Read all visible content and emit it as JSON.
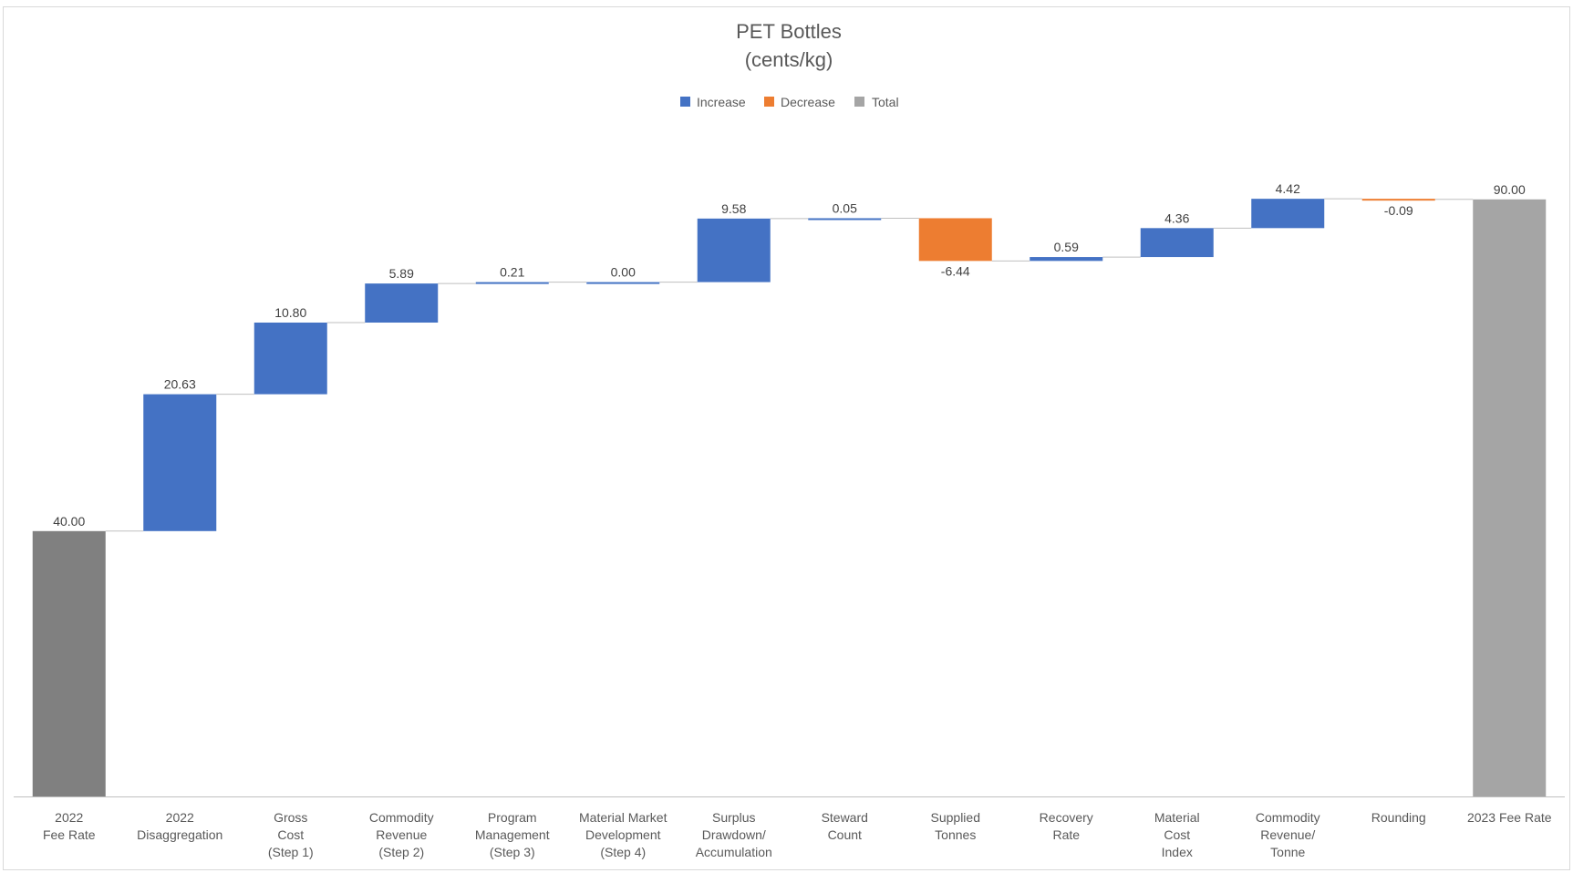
{
  "chart_data": {
    "type": "waterfall",
    "title": "PET Bottles",
    "subtitle": "(cents/kg)",
    "legend": {
      "placement": "top",
      "entries": [
        {
          "name": "Increase",
          "color": "#4472c4"
        },
        {
          "name": "Decrease",
          "color": "#ed7d31"
        },
        {
          "name": "Total",
          "color": "#a5a5a5"
        }
      ]
    },
    "categories": [
      [
        "2022",
        "Fee Rate"
      ],
      [
        "2022",
        "Disaggregation"
      ],
      [
        "Gross",
        "Cost",
        "(Step 1)"
      ],
      [
        "Commodity",
        "Revenue",
        "(Step 2)"
      ],
      [
        "Program",
        "Management",
        "(Step 3)"
      ],
      [
        "Material Market",
        "Development",
        "(Step 4)"
      ],
      [
        "Surplus",
        "Drawdown/",
        "Accumulation"
      ],
      [
        "Steward",
        "Count"
      ],
      [
        "Supplied",
        "Tonnes"
      ],
      [
        "Recovery",
        "Rate"
      ],
      [
        "Material",
        "Cost",
        "Index"
      ],
      [
        "Commodity",
        "Revenue/",
        "Tonne"
      ],
      [
        "Rounding"
      ],
      [
        "2023 Fee Rate"
      ]
    ],
    "values": [
      40.0,
      20.63,
      10.8,
      5.89,
      0.21,
      0.0,
      9.58,
      0.05,
      -6.44,
      0.59,
      4.36,
      4.42,
      -0.09,
      90.0
    ],
    "labels": [
      "40.00",
      "20.63",
      "10.80",
      "5.89",
      "0.21",
      "0.00",
      "9.58",
      "0.05",
      "-6.44",
      "0.59",
      "4.36",
      "4.42",
      "-0.09",
      "90.00"
    ],
    "kinds": [
      "total-start",
      "increase",
      "increase",
      "increase",
      "increase",
      "increase",
      "increase",
      "increase",
      "decrease",
      "increase",
      "increase",
      "increase",
      "decrease",
      "total"
    ],
    "colors": {
      "increase": "#4472c4",
      "decrease": "#ed7d31",
      "total": "#a5a5a5",
      "start_total": "#808080",
      "connector": "#bfbfbf",
      "axis": "#bfbfbf"
    },
    "ylim": [
      0,
      100
    ],
    "grid": false
  }
}
